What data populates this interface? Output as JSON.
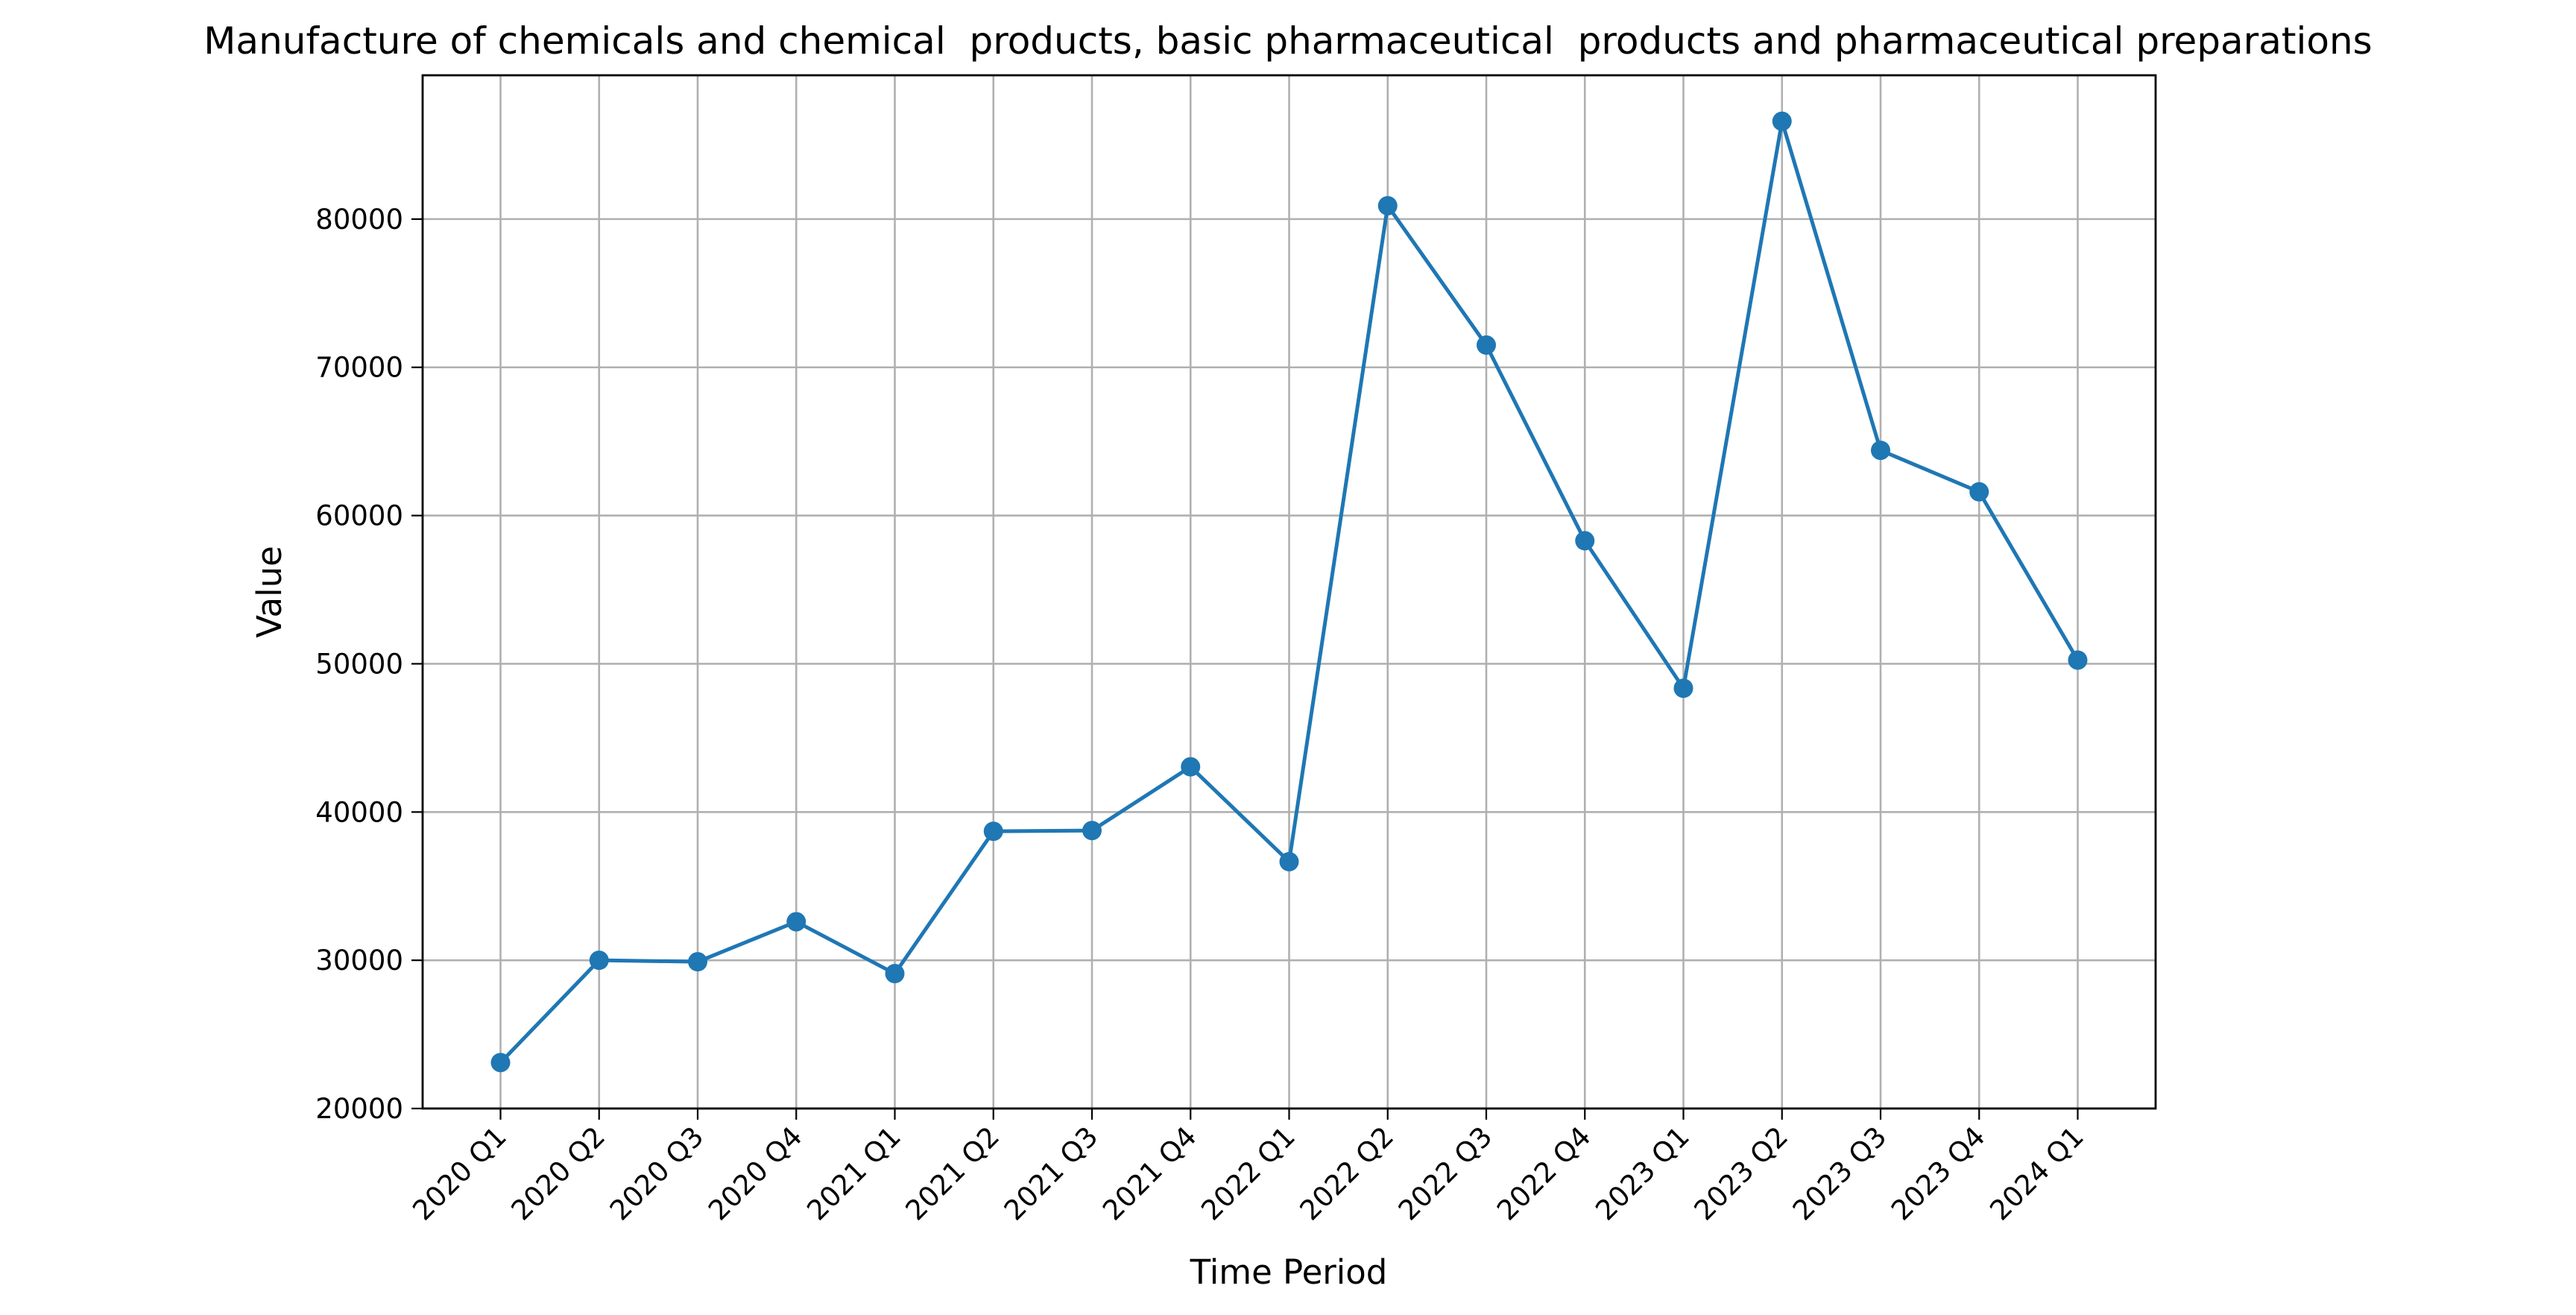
{
  "chart_data": {
    "type": "line",
    "title": "Manufacture of chemicals and chemical  products, basic pharmaceutical  products and pharmaceutical preparations",
    "xlabel": "Time Period",
    "ylabel": "Value",
    "categories": [
      "2020 Q1",
      "2020 Q2",
      "2020 Q3",
      "2020 Q4",
      "2021 Q1",
      "2021 Q2",
      "2021 Q3",
      "2021 Q4",
      "2022 Q1",
      "2022 Q2",
      "2022 Q3",
      "2022 Q4",
      "2023 Q1",
      "2023 Q2",
      "2023 Q3",
      "2023 Q4",
      "2024 Q1"
    ],
    "series": [
      {
        "values": [
          23100,
          30000,
          29900,
          32600,
          29100,
          38700,
          38750,
          43050,
          36650,
          80900,
          71500,
          58300,
          48350,
          86600,
          64400,
          61600,
          50250
        ],
        "color": "#1f77b4",
        "marker": "circle"
      }
    ],
    "ylim": [
      20000,
      89700
    ],
    "yticks": [
      20000,
      30000,
      40000,
      50000,
      60000,
      70000,
      80000
    ],
    "grid": true,
    "legend": "none"
  }
}
